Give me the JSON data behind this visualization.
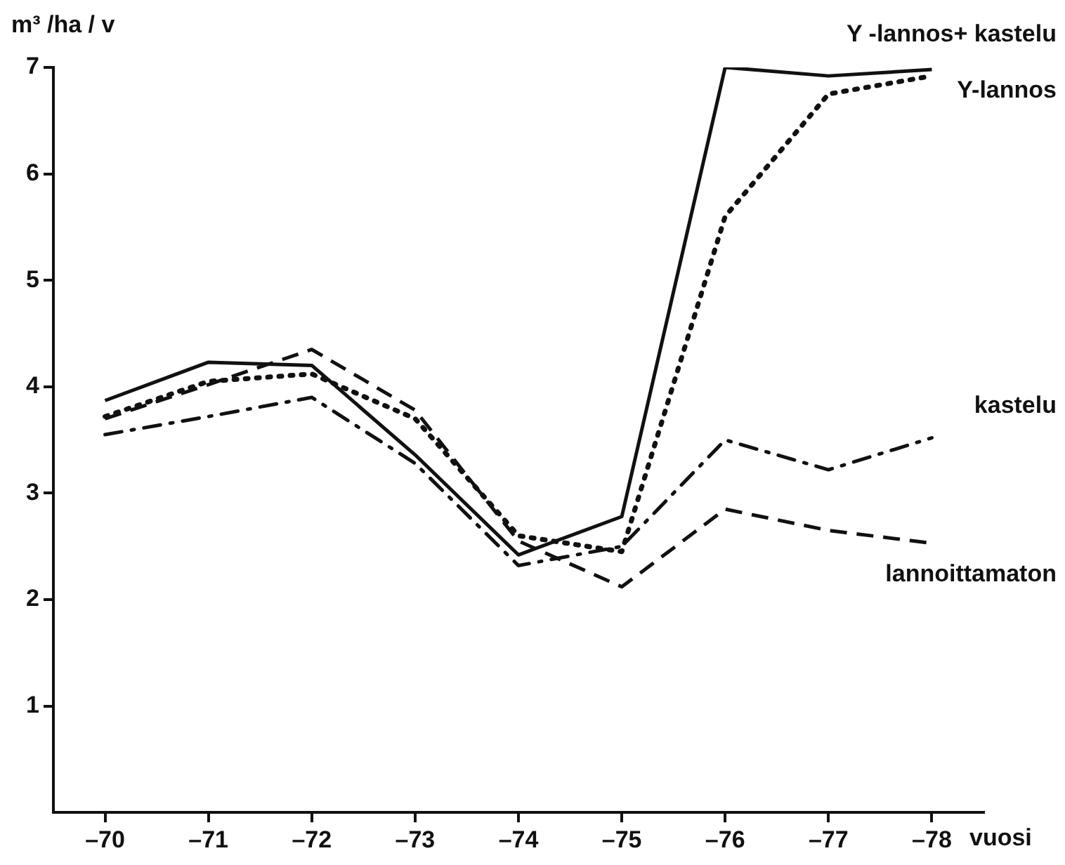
{
  "chart_data": {
    "type": "line",
    "ylabel": "m³ /ha / v",
    "xlabel": "vuosi",
    "categories": [
      "–70",
      "–71",
      "–72",
      "–73",
      "–74",
      "–75",
      "–76",
      "–77",
      "–78"
    ],
    "series": [
      {
        "name": "Y -lannos+ kastelu",
        "color": "#111111",
        "line_style": "solid",
        "values": [
          3.87,
          4.23,
          4.2,
          3.36,
          2.42,
          2.78,
          7.0,
          6.92,
          6.98
        ]
      },
      {
        "name": "Y-lannos",
        "color": "#111111",
        "line_style": "dotted",
        "values": [
          3.72,
          4.05,
          4.12,
          3.7,
          2.6,
          2.45,
          5.6,
          6.75,
          6.92
        ]
      },
      {
        "name": "kastelu",
        "color": "#111111",
        "line_style": "dashdot",
        "values": [
          3.55,
          3.72,
          3.9,
          3.28,
          2.32,
          2.5,
          3.5,
          3.22,
          3.52
        ]
      },
      {
        "name": "lannoittamaton",
        "color": "#111111",
        "line_style": "dashed",
        "values": [
          3.7,
          4.02,
          4.35,
          3.78,
          2.55,
          2.12,
          2.85,
          2.65,
          2.53
        ]
      }
    ],
    "ylim": [
      0,
      7
    ],
    "yticks": [
      1,
      2,
      3,
      4,
      5,
      6,
      7
    ],
    "grid": false,
    "legend": false,
    "marker": "none"
  }
}
